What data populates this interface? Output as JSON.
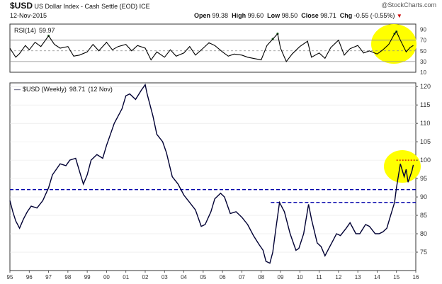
{
  "header": {
    "symbol": "$USD",
    "name": "US Dollar Index - Cash Settle (EOD)",
    "exchange": "ICE",
    "date": "12-Nov-2015",
    "open_label": "Open",
    "open": "99.38",
    "high_label": "High",
    "high": "99.60",
    "low_label": "Low",
    "low": "98.50",
    "close_label": "Close",
    "close": "98.71",
    "chg_label": "Chg",
    "chg": "-0.55 (-0.55%)",
    "chg_arrow": "▼",
    "watermark": "@StockCharts.com"
  },
  "colors": {
    "price_line": "#000033",
    "guide": "#0000aa",
    "resistance": "#cc0000",
    "highlight": "#ffff00",
    "rsi_line": "#000000",
    "overbought_fill": "#2e7d32"
  },
  "chart_data": [
    {
      "type": "line",
      "title": "RSI(14) 59.97",
      "series_label": "RSI(14)",
      "last_value": "59.97",
      "ylim": [
        10,
        100
      ],
      "yticks": [
        "90",
        "70",
        "50",
        "30",
        "10"
      ],
      "reference_lines": [
        70,
        50,
        30
      ],
      "annotation": "highlight circle around 2015 RSI readings",
      "x": [
        1995.0,
        1995.3,
        1995.5,
        1995.8,
        1996.0,
        1996.3,
        1996.6,
        1997.0,
        1997.3,
        1997.6,
        1998.0,
        1998.3,
        1998.6,
        1999.0,
        1999.3,
        1999.6,
        2000.0,
        2000.3,
        2000.6,
        2001.0,
        2001.3,
        2001.6,
        2002.0,
        2002.3,
        2002.6,
        2003.0,
        2003.3,
        2003.6,
        2004.0,
        2004.3,
        2004.6,
        2005.0,
        2005.3,
        2005.6,
        2006.0,
        2006.3,
        2006.6,
        2007.0,
        2007.3,
        2007.6,
        2008.0,
        2008.3,
        2008.6,
        2008.85,
        2009.0,
        2009.3,
        2009.6,
        2010.0,
        2010.4,
        2010.6,
        2011.0,
        2011.3,
        2011.6,
        2012.0,
        2012.3,
        2012.6,
        2013.0,
        2013.3,
        2013.6,
        2014.0,
        2014.3,
        2014.6,
        2014.9,
        2015.0,
        2015.2,
        2015.5,
        2015.7,
        2015.87
      ],
      "values": [
        55,
        38,
        45,
        60,
        52,
        66,
        58,
        78,
        62,
        55,
        58,
        40,
        42,
        48,
        62,
        50,
        66,
        52,
        58,
        62,
        50,
        60,
        55,
        33,
        48,
        38,
        52,
        40,
        46,
        58,
        42,
        55,
        65,
        60,
        48,
        40,
        44,
        42,
        38,
        36,
        33,
        60,
        72,
        82,
        55,
        30,
        44,
        58,
        68,
        38,
        46,
        36,
        56,
        70,
        42,
        54,
        60,
        46,
        50,
        44,
        52,
        62,
        82,
        86,
        70,
        48,
        56,
        60
      ]
    },
    {
      "type": "line",
      "title": "$USD (Weekly) 98.71 (12 Nov)",
      "series_label": "$USD (Weekly)",
      "last_value": "98.71",
      "last_date": "12 Nov",
      "xlabel": "",
      "ylabel": "",
      "xlim": [
        1995,
        2016
      ],
      "ylim": [
        70,
        121
      ],
      "x_tick_labels": [
        "95",
        "96",
        "97",
        "98",
        "99",
        "00",
        "01",
        "02",
        "03",
        "04",
        "05",
        "06",
        "07",
        "08",
        "09",
        "10",
        "11",
        "12",
        "13",
        "14",
        "15",
        "16"
      ],
      "y_tick_labels": [
        "120",
        "115",
        "110",
        "105",
        "100",
        "95",
        "90",
        "85",
        "80",
        "75"
      ],
      "horizontal_lines": [
        {
          "y": 92.0,
          "from": 1995.0,
          "to": 2016.0,
          "style": "dashed",
          "color": "#0000aa"
        },
        {
          "y": 88.5,
          "from": 2008.5,
          "to": 2016.0,
          "style": "dashed",
          "color": "#0000aa"
        },
        {
          "y": 100.0,
          "from": 2015.0,
          "to": 2016.0,
          "style": "dotted",
          "color": "#cc0000"
        }
      ],
      "annotation": "highlight circle around 2015 consolidation below 100",
      "x": [
        1995.0,
        1995.15,
        1995.3,
        1995.5,
        1995.7,
        1995.9,
        1996.1,
        1996.4,
        1996.7,
        1997.0,
        1997.2,
        1997.4,
        1997.6,
        1997.9,
        1998.1,
        1998.4,
        1998.6,
        1998.8,
        1999.0,
        1999.2,
        1999.5,
        1999.8,
        2000.0,
        2000.2,
        2000.4,
        2000.6,
        2000.8,
        2001.0,
        2001.2,
        2001.5,
        2001.8,
        2002.0,
        2002.1,
        2002.4,
        2002.6,
        2002.9,
        2003.1,
        2003.4,
        2003.7,
        2004.0,
        2004.3,
        2004.6,
        2004.9,
        2005.1,
        2005.4,
        2005.6,
        2005.9,
        2006.1,
        2006.4,
        2006.7,
        2007.0,
        2007.3,
        2007.6,
        2007.9,
        2008.1,
        2008.25,
        2008.45,
        2008.6,
        2008.75,
        2008.95,
        2009.2,
        2009.5,
        2009.8,
        2009.95,
        2010.2,
        2010.45,
        2010.6,
        2010.9,
        2011.1,
        2011.3,
        2011.5,
        2011.7,
        2011.9,
        2012.1,
        2012.4,
        2012.6,
        2012.9,
        2013.1,
        2013.4,
        2013.6,
        2013.9,
        2014.1,
        2014.3,
        2014.5,
        2014.7,
        2014.9,
        2015.0,
        2015.2,
        2015.4,
        2015.5,
        2015.6,
        2015.8,
        2015.87
      ],
      "values": [
        89.0,
        86.0,
        83.5,
        81.5,
        84.0,
        86.0,
        87.5,
        87.0,
        89.0,
        92.5,
        96.0,
        97.5,
        99.0,
        98.5,
        100.0,
        100.5,
        97.0,
        93.5,
        96.0,
        100.0,
        101.5,
        100.5,
        104.0,
        107.0,
        110.0,
        112.0,
        114.0,
        117.5,
        118.0,
        116.5,
        119.0,
        120.5,
        118.0,
        112.0,
        107.0,
        105.0,
        102.0,
        95.5,
        93.5,
        90.5,
        88.5,
        86.5,
        82.0,
        82.5,
        86.0,
        89.5,
        91.0,
        90.0,
        85.5,
        86.0,
        84.5,
        82.5,
        79.5,
        77.0,
        75.5,
        72.5,
        72.0,
        75.0,
        81.0,
        88.5,
        86.0,
        80.0,
        75.5,
        76.0,
        80.0,
        88.0,
        84.0,
        77.5,
        76.5,
        74.0,
        76.0,
        78.0,
        80.0,
        79.5,
        81.5,
        83.0,
        80.0,
        80.0,
        82.5,
        82.0,
        80.0,
        80.0,
        80.5,
        81.5,
        85.0,
        88.5,
        92.5,
        99.0,
        95.5,
        97.5,
        94.0,
        97.0,
        98.71
      ]
    }
  ]
}
